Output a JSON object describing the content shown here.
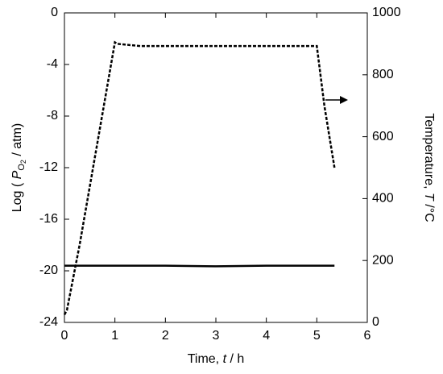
{
  "chart_data": {
    "type": "line",
    "xlabel": {
      "text": "Time, ",
      "symbol": "t",
      "unit": " / h"
    },
    "ylabel": {
      "text": "Log ( ",
      "symbol": "P",
      "sub": "O",
      "subsub": "2",
      "unit": " / atm)"
    },
    "y2label": {
      "text": "Temperature, ",
      "symbol": "T",
      "unit": " /°C"
    },
    "xlim": [
      0,
      6
    ],
    "xticks": [
      0,
      1,
      2,
      3,
      4,
      5,
      6
    ],
    "ylim": [
      -24,
      0
    ],
    "yticks": [
      -24,
      -20,
      -16,
      -12,
      -8,
      -4,
      0
    ],
    "y2lim": [
      0,
      1000
    ],
    "y2ticks": [
      0,
      200,
      400,
      600,
      800,
      1000
    ],
    "grid": false,
    "series": [
      {
        "color": "#000000",
        "dashed": false,
        "x": [
          0,
          2,
          3,
          4,
          5.35
        ],
        "values": [
          -19.6,
          -19.6,
          -19.65,
          -19.6,
          -19.6
        ]
      },
      {
        "color": "#000000",
        "dashed": true,
        "axis": "y2",
        "x": [
          0,
          0.05,
          0.3,
          1.0,
          1.05,
          1.5,
          3,
          4.5,
          5.0,
          5.15,
          5.35
        ],
        "values": [
          25,
          40,
          250,
          905,
          900,
          893,
          893,
          893,
          893,
          700,
          500
        ]
      }
    ]
  }
}
